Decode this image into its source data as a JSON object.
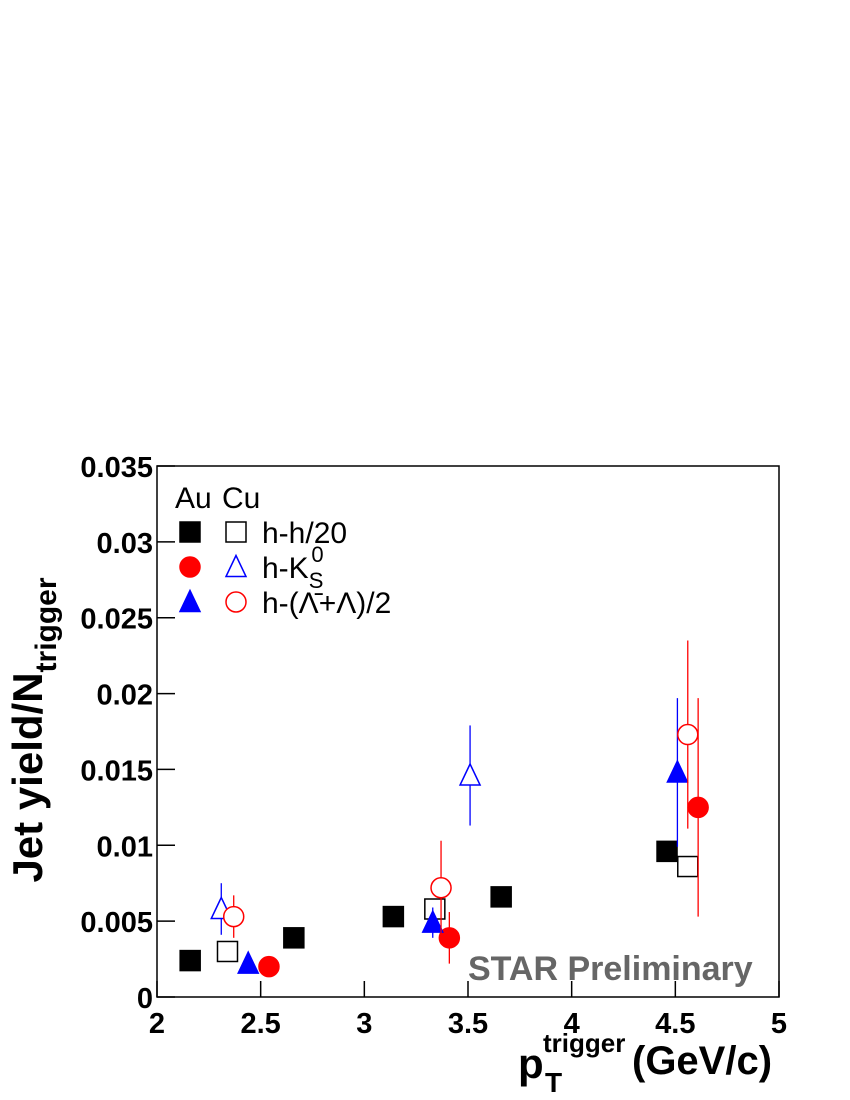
{
  "chart_data": {
    "type": "scatter",
    "y_label": "Jet yield/N",
    "y_label_sub": "trigger",
    "x_label": "p",
    "x_label_sub": "T",
    "x_label_sup": "trigger",
    "x_label_unit": "(GeV/c)",
    "annotation": "STAR Preliminary",
    "xlim": [
      2,
      5
    ],
    "xticks": [
      2,
      2.5,
      3,
      3.5,
      4,
      4.5,
      5
    ],
    "ylim": [
      0,
      0.035
    ],
    "yticks": [
      0,
      0.005,
      0.01,
      0.015,
      0.02,
      0.025,
      0.03,
      0.035
    ],
    "legend": {
      "header": [
        "Au",
        "Cu"
      ],
      "rows": [
        {
          "label": "h-h/20"
        },
        {
          "label": "h-K",
          "sub": "S",
          "sup": "0"
        },
        {
          "label": "h-(Λ̄+Λ)/2"
        }
      ]
    },
    "series": [
      {
        "marker": "square",
        "filled": true,
        "color": "#000000",
        "x": [
          2.16,
          2.66,
          3.14,
          3.66,
          4.46
        ],
        "values": [
          0.0024,
          0.0039,
          0.0053,
          0.0066,
          0.0096
        ],
        "errors": [
          null,
          null,
          null,
          null,
          null
        ]
      },
      {
        "marker": "square",
        "filled": false,
        "color": "#000000",
        "x": [
          2.34,
          3.34,
          4.56
        ],
        "values": [
          0.003,
          0.0058,
          0.0086
        ],
        "errors": [
          null,
          null,
          0.0006
        ]
      },
      {
        "marker": "circle",
        "filled": true,
        "color": "#ff0000",
        "x": [
          2.54,
          3.41,
          4.61
        ],
        "values": [
          0.002,
          0.0039,
          0.0125
        ],
        "errors": [
          null,
          0.0017,
          0.0072
        ]
      },
      {
        "marker": "triangle",
        "filled": false,
        "color": "#0000ff",
        "x": [
          2.31,
          3.51
        ],
        "values": [
          0.0058,
          0.0146
        ],
        "errors": [
          0.0017,
          0.0033
        ]
      },
      {
        "marker": "triangle",
        "filled": true,
        "color": "#0000ff",
        "x": [
          2.44,
          3.33,
          4.51
        ],
        "values": [
          0.0022,
          0.0049,
          0.0148
        ],
        "errors": [
          null,
          0.001,
          0.0049
        ]
      },
      {
        "marker": "circle",
        "filled": false,
        "color": "#ff0000",
        "x": [
          2.37,
          3.37,
          4.56
        ],
        "values": [
          0.0053,
          0.0072,
          0.0173
        ],
        "errors": [
          0.0014,
          0.0031,
          0.0062
        ]
      }
    ]
  }
}
